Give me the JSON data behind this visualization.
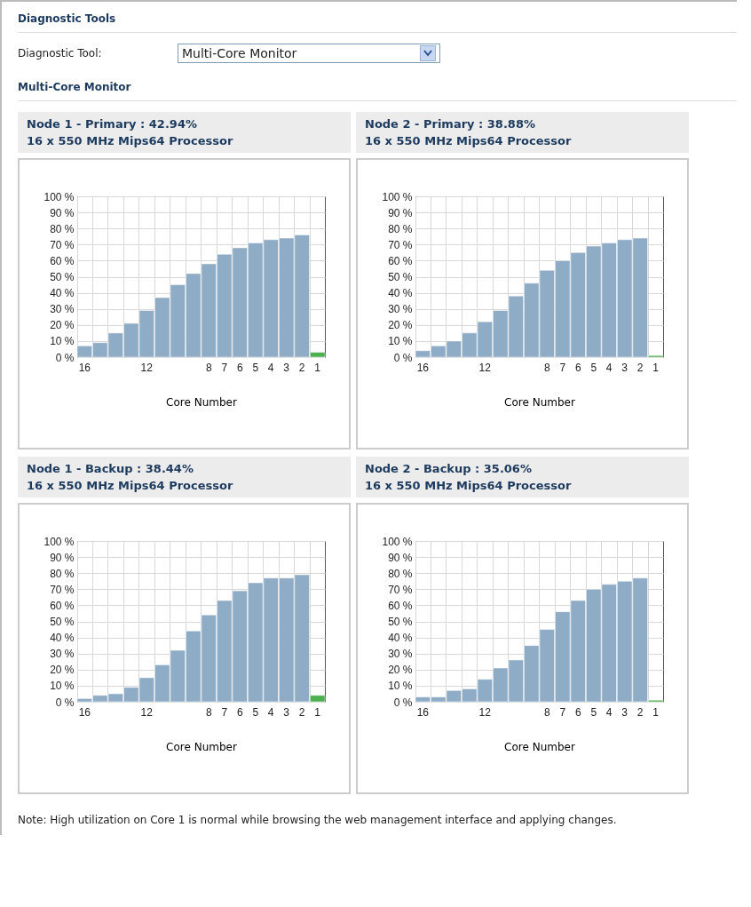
{
  "chart_data": [
    {
      "type": "other",
      "title": "Diagnostic Tools",
      "annotations": [
        "Diagnostic Tool:",
        "Multi-Core Monitor",
        "Multi-Core Monitor"
      ]
    },
    {
      "type": "bar",
      "title": "Node 1 - Primary : 42.94%",
      "subtitle": "16 x 550 MHz Mips64 Processor",
      "xlabel": "Core Number",
      "categories": [
        "16",
        null,
        null,
        null,
        "12",
        null,
        null,
        null,
        "8",
        "7",
        "6",
        "5",
        "4",
        "3",
        "2",
        "1"
      ],
      "values": [
        7,
        9,
        15,
        21,
        29,
        37,
        45,
        52,
        58,
        64,
        68,
        71,
        73,
        74,
        76,
        3
      ],
      "colors": [
        "#8eacc6",
        "#8eacc6",
        "#8eacc6",
        "#8eacc6",
        "#8eacc6",
        "#8eacc6",
        "#8eacc6",
        "#8eacc6",
        "#8eacc6",
        "#8eacc6",
        "#8eacc6",
        "#8eacc6",
        "#8eacc6",
        "#8eacc6",
        "#8eacc6",
        "#4caf50"
      ],
      "ylim": [
        0,
        100
      ],
      "yticks": [
        {
          "value": 0,
          "label": "0 %"
        },
        {
          "value": 10,
          "label": "10 %"
        },
        {
          "value": 20,
          "label": "20 %"
        },
        {
          "value": 30,
          "label": "30 %"
        },
        {
          "value": 40,
          "label": "40 %"
        },
        {
          "value": 50,
          "label": "50 %"
        },
        {
          "value": 60,
          "label": "60 %"
        },
        {
          "value": 70,
          "label": "70 %"
        },
        {
          "value": 80,
          "label": "80 %"
        },
        {
          "value": 90,
          "label": "90 %"
        },
        {
          "value": 100,
          "label": "100 %"
        }
      ],
      "grid": true
    },
    {
      "type": "bar",
      "title": "Node 2 - Primary : 38.88%",
      "subtitle": "16 x 550 MHz Mips64 Processor",
      "xlabel": "Core Number",
      "categories": [
        "16",
        null,
        null,
        null,
        "12",
        null,
        null,
        null,
        "8",
        "7",
        "6",
        "5",
        "4",
        "3",
        "2",
        "1"
      ],
      "values": [
        4,
        7,
        10,
        15,
        22,
        29,
        38,
        46,
        54,
        60,
        65,
        69,
        71,
        73,
        74,
        1
      ],
      "colors": [
        "#8eacc6",
        "#8eacc6",
        "#8eacc6",
        "#8eacc6",
        "#8eacc6",
        "#8eacc6",
        "#8eacc6",
        "#8eacc6",
        "#8eacc6",
        "#8eacc6",
        "#8eacc6",
        "#8eacc6",
        "#8eacc6",
        "#8eacc6",
        "#8eacc6",
        "#4caf50"
      ],
      "ylim": [
        0,
        100
      ],
      "yticks": [
        {
          "value": 0,
          "label": "0 %"
        },
        {
          "value": 10,
          "label": "10 %"
        },
        {
          "value": 20,
          "label": "20 %"
        },
        {
          "value": 30,
          "label": "30 %"
        },
        {
          "value": 40,
          "label": "40 %"
        },
        {
          "value": 50,
          "label": "50 %"
        },
        {
          "value": 60,
          "label": "60 %"
        },
        {
          "value": 70,
          "label": "70 %"
        },
        {
          "value": 80,
          "label": "80 %"
        },
        {
          "value": 90,
          "label": "90 %"
        },
        {
          "value": 100,
          "label": "100 %"
        }
      ],
      "grid": true
    },
    {
      "type": "bar",
      "title": "Node 1 - Backup : 38.44%",
      "subtitle": "16 x 550 MHz Mips64 Processor",
      "xlabel": "Core Number",
      "categories": [
        "16",
        null,
        null,
        null,
        "12",
        null,
        null,
        null,
        "8",
        "7",
        "6",
        "5",
        "4",
        "3",
        "2",
        "1"
      ],
      "values": [
        2,
        4,
        5,
        9,
        15,
        23,
        32,
        44,
        54,
        63,
        69,
        74,
        77,
        77,
        79,
        4
      ],
      "colors": [
        "#8eacc6",
        "#8eacc6",
        "#8eacc6",
        "#8eacc6",
        "#8eacc6",
        "#8eacc6",
        "#8eacc6",
        "#8eacc6",
        "#8eacc6",
        "#8eacc6",
        "#8eacc6",
        "#8eacc6",
        "#8eacc6",
        "#8eacc6",
        "#8eacc6",
        "#4caf50"
      ],
      "ylim": [
        0,
        100
      ],
      "yticks": [
        {
          "value": 0,
          "label": "0 %"
        },
        {
          "value": 10,
          "label": "10 %"
        },
        {
          "value": 20,
          "label": "20 %"
        },
        {
          "value": 30,
          "label": "30 %"
        },
        {
          "value": 40,
          "label": "40 %"
        },
        {
          "value": 50,
          "label": "50 %"
        },
        {
          "value": 60,
          "label": "60 %"
        },
        {
          "value": 70,
          "label": "70 %"
        },
        {
          "value": 80,
          "label": "80 %"
        },
        {
          "value": 90,
          "label": "90 %"
        },
        {
          "value": 100,
          "label": "100 %"
        }
      ],
      "grid": true
    },
    {
      "type": "bar",
      "title": "Node 2 - Backup : 35.06%",
      "subtitle": "16 x 550 MHz Mips64 Processor",
      "xlabel": "Core Number",
      "categories": [
        "16",
        null,
        null,
        null,
        "12",
        null,
        null,
        null,
        "8",
        "7",
        "6",
        "5",
        "4",
        "3",
        "2",
        "1"
      ],
      "values": [
        3,
        3,
        7,
        8,
        14,
        21,
        26,
        35,
        45,
        56,
        63,
        70,
        73,
        75,
        77,
        1
      ],
      "colors": [
        "#8eacc6",
        "#8eacc6",
        "#8eacc6",
        "#8eacc6",
        "#8eacc6",
        "#8eacc6",
        "#8eacc6",
        "#8eacc6",
        "#8eacc6",
        "#8eacc6",
        "#8eacc6",
        "#8eacc6",
        "#8eacc6",
        "#8eacc6",
        "#8eacc6",
        "#4caf50"
      ],
      "ylim": [
        0,
        100
      ],
      "yticks": [
        {
          "value": 0,
          "label": "0 %"
        },
        {
          "value": 10,
          "label": "10 %"
        },
        {
          "value": 20,
          "label": "20 %"
        },
        {
          "value": 30,
          "label": "30 %"
        },
        {
          "value": 40,
          "label": "40 %"
        },
        {
          "value": 50,
          "label": "50 %"
        },
        {
          "value": 60,
          "label": "60 %"
        },
        {
          "value": 70,
          "label": "70 %"
        },
        {
          "value": 80,
          "label": "80 %"
        },
        {
          "value": 90,
          "label": "90 %"
        },
        {
          "value": 100,
          "label": "100 %"
        }
      ],
      "grid": true
    },
    {
      "type": "other",
      "annotations": [
        "Note: High utilization on Core 1 is normal while browsing the web management interface and applying changes."
      ]
    }
  ]
}
